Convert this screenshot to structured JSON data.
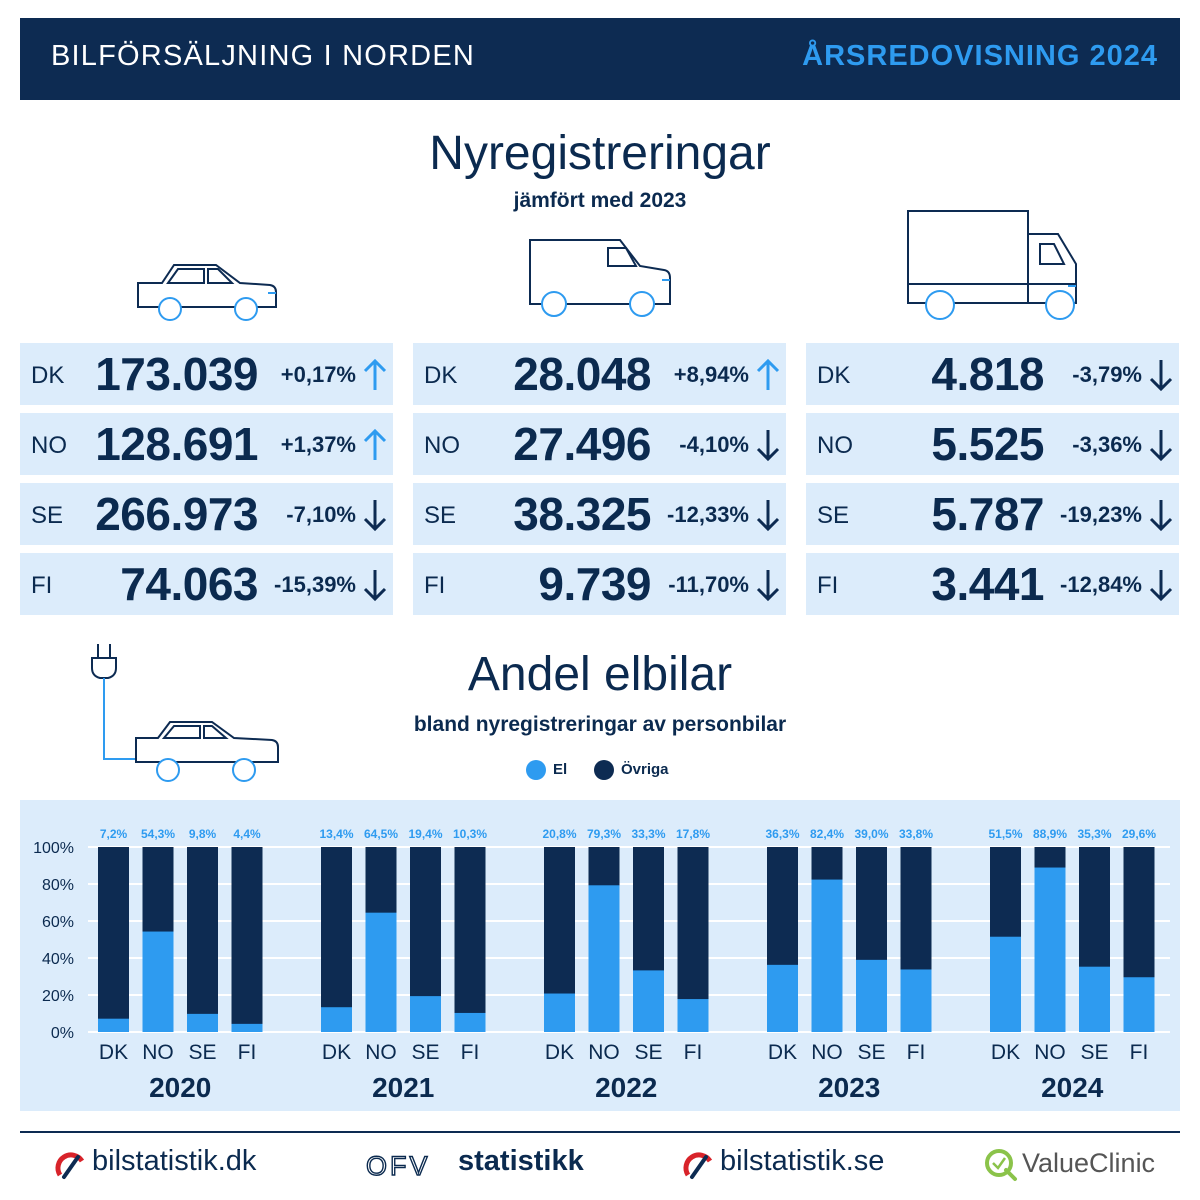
{
  "header": {
    "left": "BILFÖRSÄLJNING I NORDEN",
    "right": "ÅRSREDOVISNING 2024"
  },
  "registrations": {
    "title": "Nyregistreringar",
    "subtitle": "jämfört med 2023",
    "groups": [
      {
        "icon": "car-icon",
        "rows": [
          {
            "country": "DK",
            "value": "173.039",
            "change": "+0,17%",
            "direction": "up"
          },
          {
            "country": "NO",
            "value": "128.691",
            "change": "+1,37%",
            "direction": "up"
          },
          {
            "country": "SE",
            "value": "266.973",
            "change": "-7,10%",
            "direction": "down"
          },
          {
            "country": "FI",
            "value": "74.063",
            "change": "-15,39%",
            "direction": "down"
          }
        ]
      },
      {
        "icon": "van-icon",
        "rows": [
          {
            "country": "DK",
            "value": "28.048",
            "change": "+8,94%",
            "direction": "up"
          },
          {
            "country": "NO",
            "value": "27.496",
            "change": "-4,10%",
            "direction": "down"
          },
          {
            "country": "SE",
            "value": "38.325",
            "change": "-12,33%",
            "direction": "down"
          },
          {
            "country": "FI",
            "value": "9.739",
            "change": "-11,70%",
            "direction": "down"
          }
        ]
      },
      {
        "icon": "truck-icon",
        "rows": [
          {
            "country": "DK",
            "value": "4.818",
            "change": "-3,79%",
            "direction": "down"
          },
          {
            "country": "NO",
            "value": "5.525",
            "change": "-3,36%",
            "direction": "down"
          },
          {
            "country": "SE",
            "value": "5.787",
            "change": "-19,23%",
            "direction": "down"
          },
          {
            "country": "FI",
            "value": "3.441",
            "change": "-12,84%",
            "direction": "down"
          }
        ]
      }
    ]
  },
  "ev_share": {
    "title": "Andel elbilar",
    "subtitle": "bland nyregistreringar av personbilar"
  },
  "colors": {
    "navy": "#0d2b52",
    "accent": "#2e9bf0",
    "panel": "#dcecfb"
  },
  "chart_data": {
    "type": "bar",
    "stacked": true,
    "countries": [
      "DK",
      "NO",
      "SE",
      "FI"
    ],
    "groups": [
      "2020",
      "2021",
      "2022",
      "2023",
      "2024"
    ],
    "series": [
      {
        "name": "El",
        "color": "#2e9bf0",
        "values": [
          [
            7.2,
            54.3,
            9.8,
            4.4
          ],
          [
            13.4,
            64.5,
            19.4,
            10.3
          ],
          [
            20.8,
            79.3,
            33.3,
            17.8
          ],
          [
            36.3,
            82.4,
            39.0,
            33.8
          ],
          [
            51.5,
            88.9,
            35.3,
            29.6
          ]
        ]
      },
      {
        "name": "Övriga",
        "color": "#0d2b52",
        "values": "remainder to 100%"
      }
    ],
    "data_labels": [
      [
        "7,2%",
        "54,3%",
        "9,8%",
        "4,4%"
      ],
      [
        "13,4%",
        "64,5%",
        "19,4%",
        "10,3%"
      ],
      [
        "20,8%",
        "79,3%",
        "33,3%",
        "17,8%"
      ],
      [
        "36,3%",
        "82,4%",
        "39,0%",
        "33,8%"
      ],
      [
        "51,5%",
        "88,9%",
        "35,3%",
        "29,6%"
      ]
    ],
    "y_ticks": [
      "100%",
      "80%",
      "60%",
      "40%",
      "20%",
      "0%"
    ],
    "ylim": [
      0,
      100
    ],
    "grid": true,
    "legend_position": "top-center"
  },
  "footer": {
    "brands": [
      "bilstatistik.dk",
      "statistikk",
      "bilstatistik.se",
      "ValueClinic"
    ],
    "ofv_mark": "OFV"
  }
}
